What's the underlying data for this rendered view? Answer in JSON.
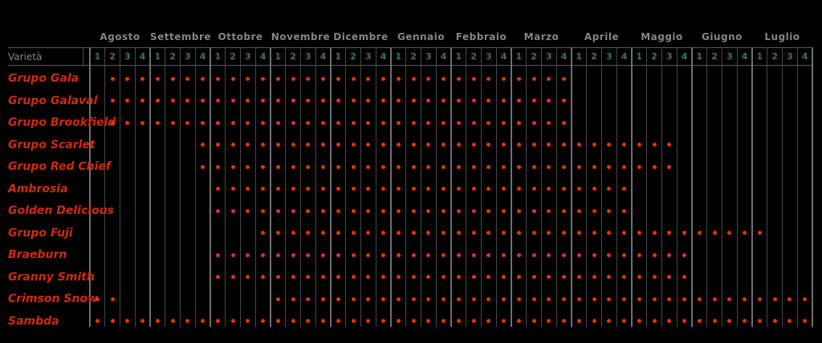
{
  "header": {
    "varieta_label": "Varietà",
    "months": [
      "Agosto",
      "Settembre",
      "Ottobre",
      "Novembre",
      "Dicembre",
      "Gennaio",
      "Febbraio",
      "Marzo",
      "Aprile",
      "Maggio",
      "Giugno",
      "Luglio"
    ],
    "week_labels": [
      "1",
      "2",
      "3",
      "4"
    ]
  },
  "rows": [
    {
      "name": "Grupo Gala",
      "available_week_ranges": [
        [
          2,
          32
        ]
      ]
    },
    {
      "name": "Grupo Galaval",
      "available_week_ranges": [
        [
          2,
          32
        ]
      ]
    },
    {
      "name": "Grupo Brookfield",
      "available_week_ranges": [
        [
          2,
          32
        ]
      ]
    },
    {
      "name": "Grupo Scarlet",
      "available_week_ranges": [
        [
          8,
          39
        ]
      ]
    },
    {
      "name": "Grupo Red Chief",
      "available_week_ranges": [
        [
          8,
          39
        ]
      ]
    },
    {
      "name": "Ambrosia",
      "available_week_ranges": [
        [
          9,
          36
        ]
      ]
    },
    {
      "name": "Golden Delicious",
      "available_week_ranges": [
        [
          9,
          36
        ]
      ]
    },
    {
      "name": "Grupo Fuji",
      "available_week_ranges": [
        [
          12,
          45
        ]
      ]
    },
    {
      "name": "Braeburn",
      "available_week_ranges": [
        [
          9,
          40
        ]
      ]
    },
    {
      "name": "Granny Smith",
      "available_week_ranges": [
        [
          9,
          40
        ]
      ]
    },
    {
      "name": "Crimson Snow",
      "available_week_ranges": [
        [
          1,
          2
        ],
        [
          13,
          48
        ]
      ]
    },
    {
      "name": "Sambda",
      "available_week_ranges": [
        [
          1,
          48
        ]
      ]
    }
  ],
  "colors": {
    "background": "#000000",
    "dot": "#e5330f",
    "row_label": "#cf2a10",
    "month_label": "#858585",
    "week_label": "#3e7b41",
    "varieta_label": "#858585",
    "grid_thin": "#474747",
    "grid_thick": "#6f6f6f",
    "header_line": "#5a5a5a"
  },
  "chart_data": {
    "type": "table",
    "title": "",
    "x_months": [
      "Agosto",
      "Settembre",
      "Ottobre",
      "Novembre",
      "Dicembre",
      "Gennaio",
      "Febbraio",
      "Marzo",
      "Aprile",
      "Maggio",
      "Giugno",
      "Luglio"
    ],
    "weeks_per_month": 4,
    "week_index_range": [
      1,
      48
    ],
    "y_axis_label": "Varietà",
    "legend": "red dot = variety available in that week",
    "series": [
      {
        "name": "Grupo Gala",
        "available_week_ranges": [
          [
            2,
            32
          ]
        ]
      },
      {
        "name": "Grupo Galaval",
        "available_week_ranges": [
          [
            2,
            32
          ]
        ]
      },
      {
        "name": "Grupo Brookfield",
        "available_week_ranges": [
          [
            2,
            32
          ]
        ]
      },
      {
        "name": "Grupo Scarlet",
        "available_week_ranges": [
          [
            8,
            39
          ]
        ]
      },
      {
        "name": "Grupo Red Chief",
        "available_week_ranges": [
          [
            8,
            39
          ]
        ]
      },
      {
        "name": "Ambrosia",
        "available_week_ranges": [
          [
            9,
            36
          ]
        ]
      },
      {
        "name": "Golden Delicious",
        "available_week_ranges": [
          [
            9,
            36
          ]
        ]
      },
      {
        "name": "Grupo Fuji",
        "available_week_ranges": [
          [
            12,
            45
          ]
        ]
      },
      {
        "name": "Braeburn",
        "available_week_ranges": [
          [
            9,
            40
          ]
        ]
      },
      {
        "name": "Granny Smith",
        "available_week_ranges": [
          [
            9,
            40
          ]
        ]
      },
      {
        "name": "Crimson Snow",
        "available_week_ranges": [
          [
            1,
            2
          ],
          [
            13,
            48
          ]
        ]
      },
      {
        "name": "Sambda",
        "available_week_ranges": [
          [
            1,
            48
          ]
        ]
      }
    ]
  }
}
